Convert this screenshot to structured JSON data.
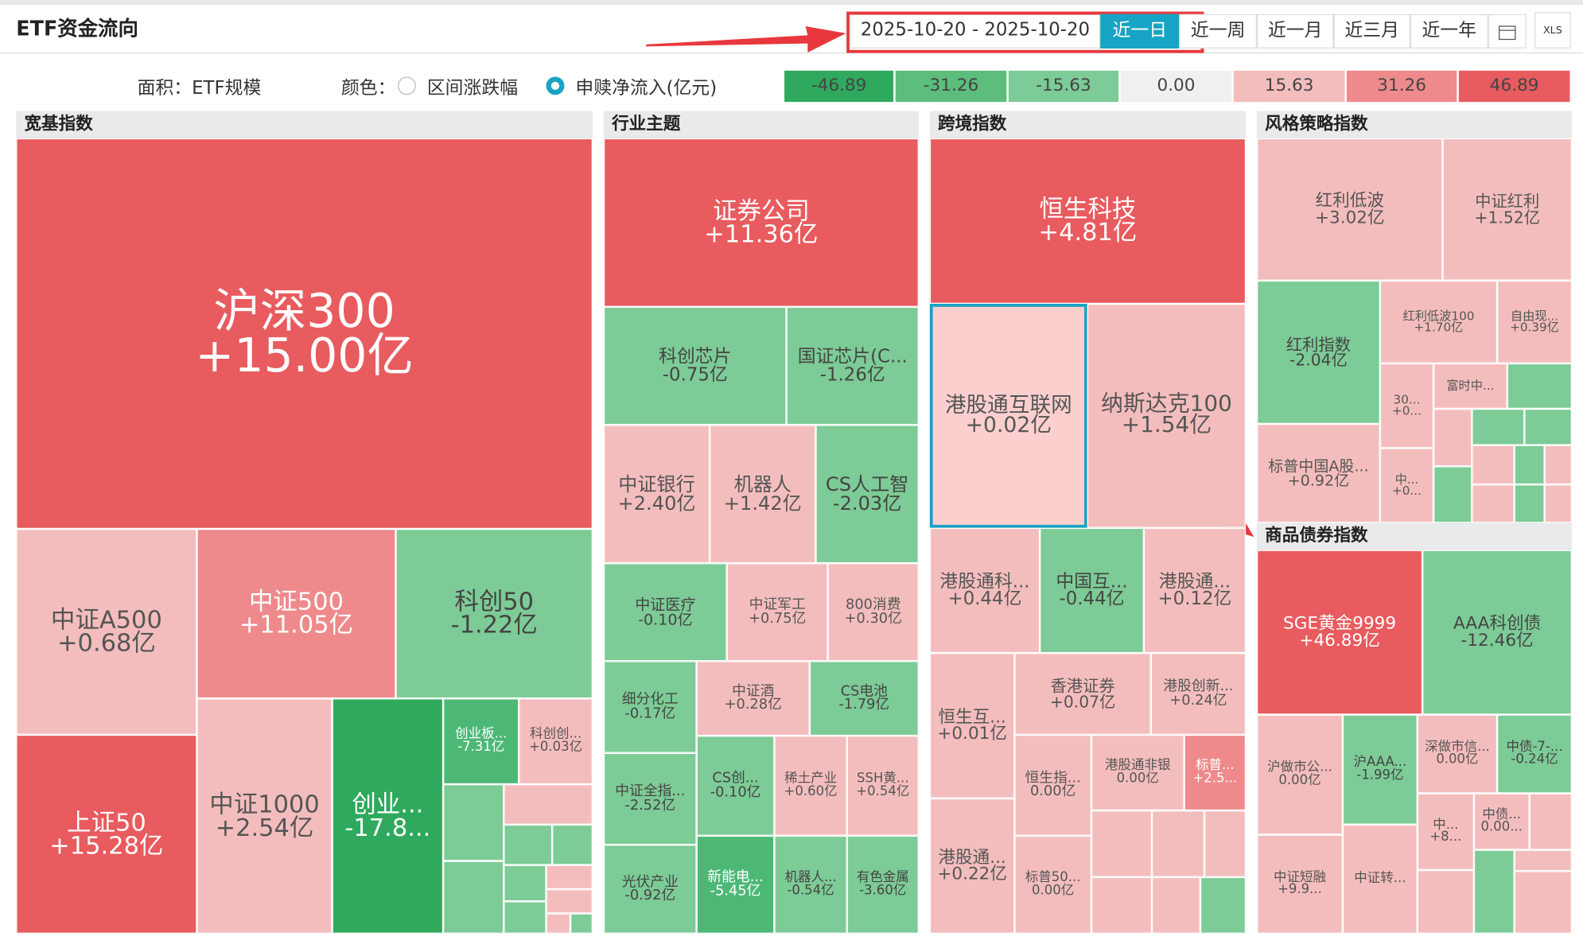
{
  "header": {
    "title": "ETF资金流向",
    "date_range": "2025-10-20 - 2025-10-20",
    "periods": [
      "近一日",
      "近一周",
      "近一月",
      "近三月",
      "近一年"
    ],
    "export": "XLS"
  },
  "controls": {
    "area": "面积：ETF规模",
    "color": "颜色：",
    "options": [
      "区间涨跌幅",
      "申赎净流入(亿元)"
    ],
    "legend": [
      "-46.89",
      "-31.26",
      "-15.63",
      "0.00",
      "15.63",
      "31.26",
      "46.89"
    ]
  },
  "sections": [
    {
      "title": "宽基指数",
      "tiles": [
        {
          "name": "沪深300",
          "value": "+15.00亿"
        },
        {
          "name": "中证A500",
          "value": "+0.68亿"
        },
        {
          "name": "上证50",
          "value": "+15.28亿"
        },
        {
          "name": "中证500",
          "value": "+11.05亿"
        },
        {
          "name": "科创50",
          "value": "-1.22亿"
        },
        {
          "name": "中证1000",
          "value": "+2.54亿"
        },
        {
          "name": "创业...",
          "value": "-17.8..."
        },
        {
          "name": "创业板...",
          "value": "-7.31亿"
        },
        {
          "name": "科创创...",
          "value": "+0.03亿"
        }
      ]
    },
    {
      "title": "行业主题",
      "tiles": [
        {
          "name": "证券公司",
          "value": "+11.36亿"
        },
        {
          "name": "科创芯片",
          "value": "-0.75亿"
        },
        {
          "name": "国证芯片(C...",
          "value": "-1.26亿"
        },
        {
          "name": "中证银行",
          "value": "+2.40亿"
        },
        {
          "name": "机器人",
          "value": "+1.42亿"
        },
        {
          "name": "CS人工智",
          "value": "-2.03亿"
        },
        {
          "name": "中证医疗",
          "value": "-0.10亿"
        },
        {
          "name": "中证军工",
          "value": "+0.75亿"
        },
        {
          "name": "800消费",
          "value": "+0.30亿"
        },
        {
          "name": "细分化工",
          "value": "-0.17亿"
        },
        {
          "name": "中证酒",
          "value": "+0.28亿"
        },
        {
          "name": "CS电池",
          "value": "-1.79亿"
        },
        {
          "name": "中证全指...",
          "value": "-2.52亿"
        },
        {
          "name": "CS创...",
          "value": "-0.10亿"
        },
        {
          "name": "稀土产业",
          "value": "+0.60亿"
        },
        {
          "name": "SSH黄...",
          "value": "+0.54亿"
        },
        {
          "name": "光伏产业",
          "value": "-0.92亿"
        },
        {
          "name": "新能电...",
          "value": "-5.45亿"
        },
        {
          "name": "机器人...",
          "value": "-0.54亿"
        },
        {
          "name": "有色金属",
          "value": "-3.60亿"
        }
      ]
    },
    {
      "title": "跨境指数",
      "tiles": [
        {
          "name": "恒生科技",
          "value": "+4.81亿"
        },
        {
          "name": "港股通互联网",
          "value": "+0.02亿"
        },
        {
          "name": "纳斯达克100",
          "value": "+1.54亿"
        },
        {
          "name": "港股通科...",
          "value": "+0.44亿"
        },
        {
          "name": "中国互...",
          "value": "-0.44亿"
        },
        {
          "name": "港股通...",
          "value": "+0.12亿"
        },
        {
          "name": "恒生互...",
          "value": "+0.01亿"
        },
        {
          "name": "香港证券",
          "value": "+0.07亿"
        },
        {
          "name": "港股创新...",
          "value": "+0.24亿"
        },
        {
          "name": "港股通...",
          "value": "+0.22亿"
        },
        {
          "name": "恒生指...",
          "value": "0.00亿"
        },
        {
          "name": "港股通非银",
          "value": "0.00亿"
        },
        {
          "name": "标普...",
          "value": "+2.5..."
        },
        {
          "name": "标普50...",
          "value": "0.00亿"
        }
      ]
    },
    {
      "title": "风格策略指数",
      "tiles": [
        {
          "name": "红利低波",
          "value": "+3.02亿"
        },
        {
          "name": "中证红利",
          "value": "+1.52亿"
        },
        {
          "name": "红利指数",
          "value": "-2.04亿"
        },
        {
          "name": "红利低波100",
          "value": "+1.70亿"
        },
        {
          "name": "自由现...",
          "value": "+0.39亿"
        },
        {
          "name": "标普中国A股...",
          "value": "+0.92亿"
        },
        {
          "name": "30...",
          "value": "+0..."
        },
        {
          "name": "富时中..."
        },
        {
          "name": "中...",
          "value": "+0..."
        }
      ]
    },
    {
      "title": "商品债券指数",
      "tiles": [
        {
          "name": "SGE黄金9999",
          "value": "+46.89亿"
        },
        {
          "name": "AAA科创债",
          "value": "-12.46亿"
        },
        {
          "name": "沪做市公...",
          "value": "0.00亿"
        },
        {
          "name": "沪AAA...",
          "value": "-1.99亿"
        },
        {
          "name": "深做市信...",
          "value": "0.00亿"
        },
        {
          "name": "中债-7-...",
          "value": "-0.24亿"
        },
        {
          "name": "中...",
          "value": "+8..."
        },
        {
          "name": "中债...",
          "value": "0.00..."
        },
        {
          "name": "中证短融",
          "value": "+9.9..."
        },
        {
          "name": "中证转..."
        }
      ]
    }
  ]
}
